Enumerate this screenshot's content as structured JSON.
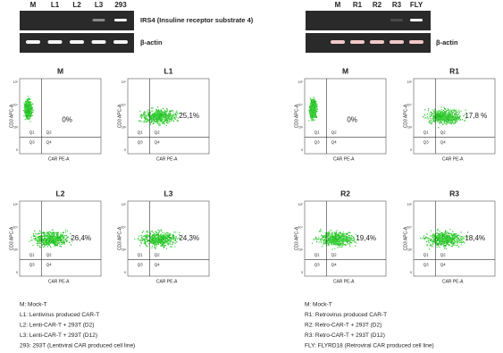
{
  "left_gel": {
    "lanes": [
      "M",
      "L1",
      "L2",
      "L3",
      "293"
    ],
    "row_labels": [
      "IRS4  (Insuline receptor substrate 4)",
      "β-actin"
    ]
  },
  "right_gel": {
    "lanes": [
      "M",
      "R1",
      "R2",
      "R3",
      "FLY"
    ],
    "row_labels": [
      "β-actin"
    ]
  },
  "axis": {
    "y_label": "CD3 APC-A",
    "x_label": "CAR PE-A",
    "quadrants": [
      "Q1",
      "Q2",
      "Q3",
      "Q4"
    ],
    "ticks": [
      "10⁵",
      "10⁴",
      "10³",
      "0"
    ]
  },
  "plots": [
    {
      "title": "M",
      "percent": "0%"
    },
    {
      "title": "L1",
      "percent": "25,1%"
    },
    {
      "title": "L2",
      "percent": "26,4%"
    },
    {
      "title": "L3",
      "percent": "24,3%"
    },
    {
      "title": "M",
      "percent": "0%"
    },
    {
      "title": "R1",
      "percent": "17,8 %"
    },
    {
      "title": "R2",
      "percent": "19,4%"
    },
    {
      "title": "R3",
      "percent": "18,4%"
    }
  ],
  "left_legend": [
    "M: Mock-T",
    "L1: Lentivirus produced CAR-T",
    "L2: Lenti-CAR-T + 293T (D2)",
    "L3: Lenti-CAR-T + 293T (D12)",
    "293: 293T  (Lentiviral CAR produced cell line)"
  ],
  "right_legend": [
    "M: Mock-T",
    "R1: Retrovirus produced CAR-T",
    "R2: Retro-CAR-T + 293T (D2)",
    "R3: Retro-CAR-T + 293T (D12)",
    "FLY: FLYRD18 (Retroviral CAR produced cell line)"
  ]
}
